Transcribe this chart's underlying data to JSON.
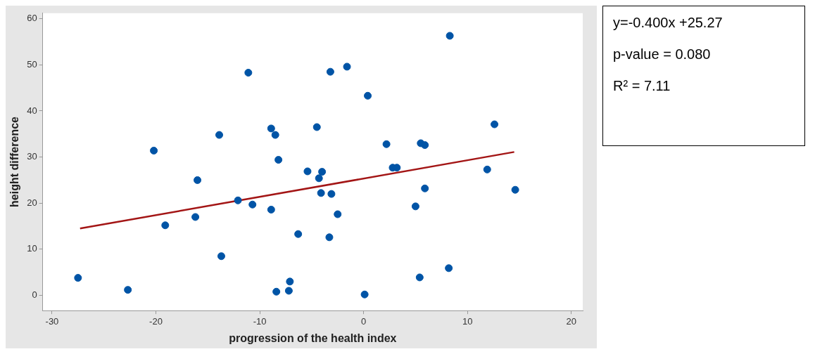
{
  "chart_data": {
    "type": "scatter",
    "xlabel": "progression of the health index",
    "ylabel": "height difference",
    "xlim": [
      -30.9,
      21.1
    ],
    "ylim": [
      -3.3,
      61.2
    ],
    "xticks": [
      -30,
      -20,
      -10,
      0,
      10,
      20
    ],
    "yticks": [
      0,
      10,
      20,
      30,
      40,
      50,
      60
    ],
    "grid": false,
    "legend": false,
    "series": [
      {
        "marker": "circle",
        "color": "#0054a6",
        "x": [
          -27.5,
          -22.7,
          -20.2,
          -19.1,
          -16.0,
          -16.2,
          -13.9,
          -13.7,
          -12.1,
          -11.1,
          -10.7,
          -8.9,
          -8.5,
          -8.2,
          -8.9,
          -8.4,
          -7.1,
          -7.2,
          -6.3,
          -5.4,
          -4.5,
          -4.3,
          -4.0,
          -4.1,
          -3.2,
          -3.1,
          -3.3,
          -2.5,
          -1.6,
          0.1,
          0.4,
          2.2,
          2.8,
          3.2,
          5.0,
          5.4,
          5.5,
          5.9,
          5.9,
          8.2,
          8.3,
          11.9,
          12.6,
          14.6
        ],
        "values": [
          3.8,
          1.2,
          31.4,
          15.2,
          25.0,
          17.0,
          34.8,
          8.5,
          20.6,
          48.3,
          19.7,
          36.2,
          34.8,
          29.4,
          18.6,
          0.8,
          3.0,
          1.0,
          13.3,
          26.9,
          36.5,
          25.4,
          26.8,
          22.2,
          48.5,
          22.0,
          12.6,
          17.6,
          49.6,
          0.2,
          43.3,
          32.8,
          27.7,
          27.7,
          19.3,
          3.9,
          33.0,
          32.6,
          23.2,
          5.9,
          56.3,
          27.3,
          37.1,
          22.9
        ]
      },
      {
        "type": "line",
        "marker": "none",
        "color": "#a31515",
        "x": [
          -27.3,
          14.5
        ],
        "values": [
          14.5,
          31.1
        ]
      }
    ],
    "annotations": [
      "y=-0.400x +25.27",
      "p-value = 0.080",
      "R² = 7.11"
    ]
  }
}
